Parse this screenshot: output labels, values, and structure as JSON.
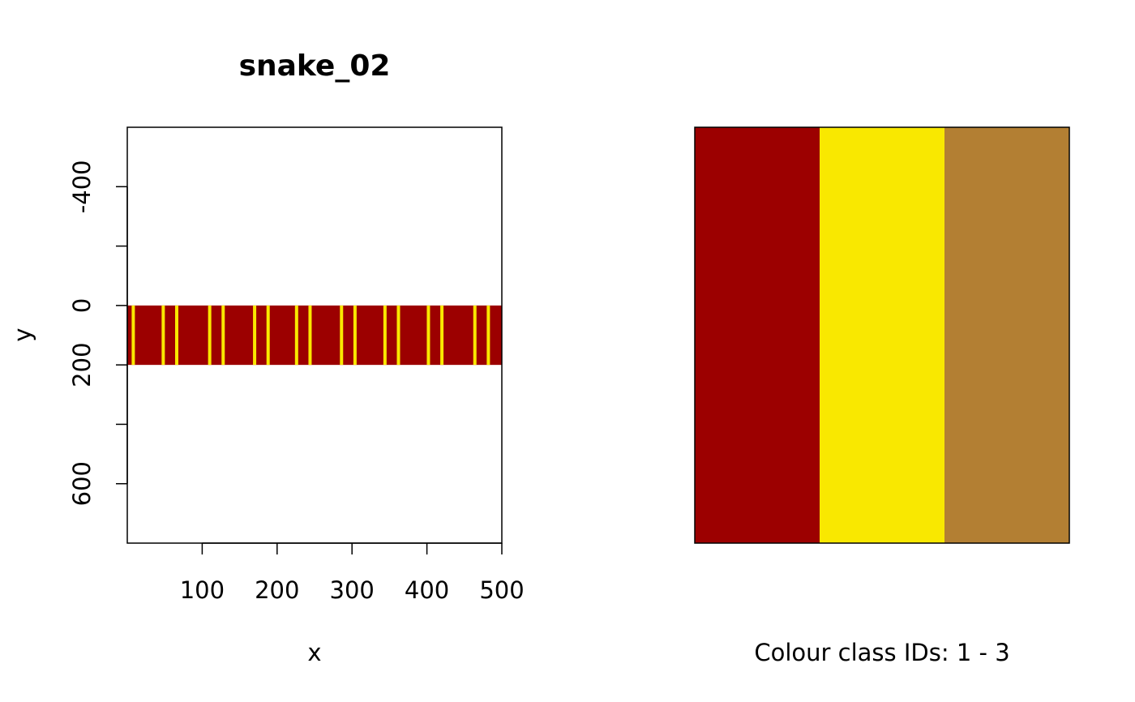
{
  "colors": {
    "background": "#ffffff",
    "class_1": "#9c0000",
    "class_2": "#f9e800",
    "class_3": "#b37f33",
    "axis": "#000000"
  },
  "chart_data": [
    {
      "type": "heatmap",
      "title": "snake_02",
      "xlabel": "x",
      "ylabel": "y",
      "xlim": [
        0,
        500
      ],
      "ylim": [
        -600,
        800
      ],
      "y_reversed": true,
      "x_ticks": [
        100,
        200,
        300,
        400,
        500
      ],
      "x_tick_labels": [
        "100",
        "200",
        "300",
        "400",
        "500"
      ],
      "y_ticks": [
        -400,
        -200,
        0,
        200,
        400,
        600
      ],
      "y_tick_labels": [
        "-400",
        "",
        "0",
        "200",
        "",
        "600"
      ],
      "band": {
        "x": [
          0,
          500
        ],
        "y": [
          0,
          200
        ],
        "color": "#9c0000"
      },
      "stripes": {
        "color": "#f9e800",
        "x": [
          8,
          48,
          66,
          110,
          128,
          170,
          188,
          226,
          244,
          286,
          304,
          344,
          362,
          402,
          420,
          464,
          482
        ]
      },
      "grid": false,
      "legend": "none"
    },
    {
      "type": "heatmap",
      "title": "",
      "xlabel": "Colour class IDs: 1 - 3",
      "class_ids": [
        1,
        2,
        3
      ],
      "colors": [
        "#9c0000",
        "#f9e800",
        "#b37f33"
      ],
      "axes": "none"
    }
  ]
}
